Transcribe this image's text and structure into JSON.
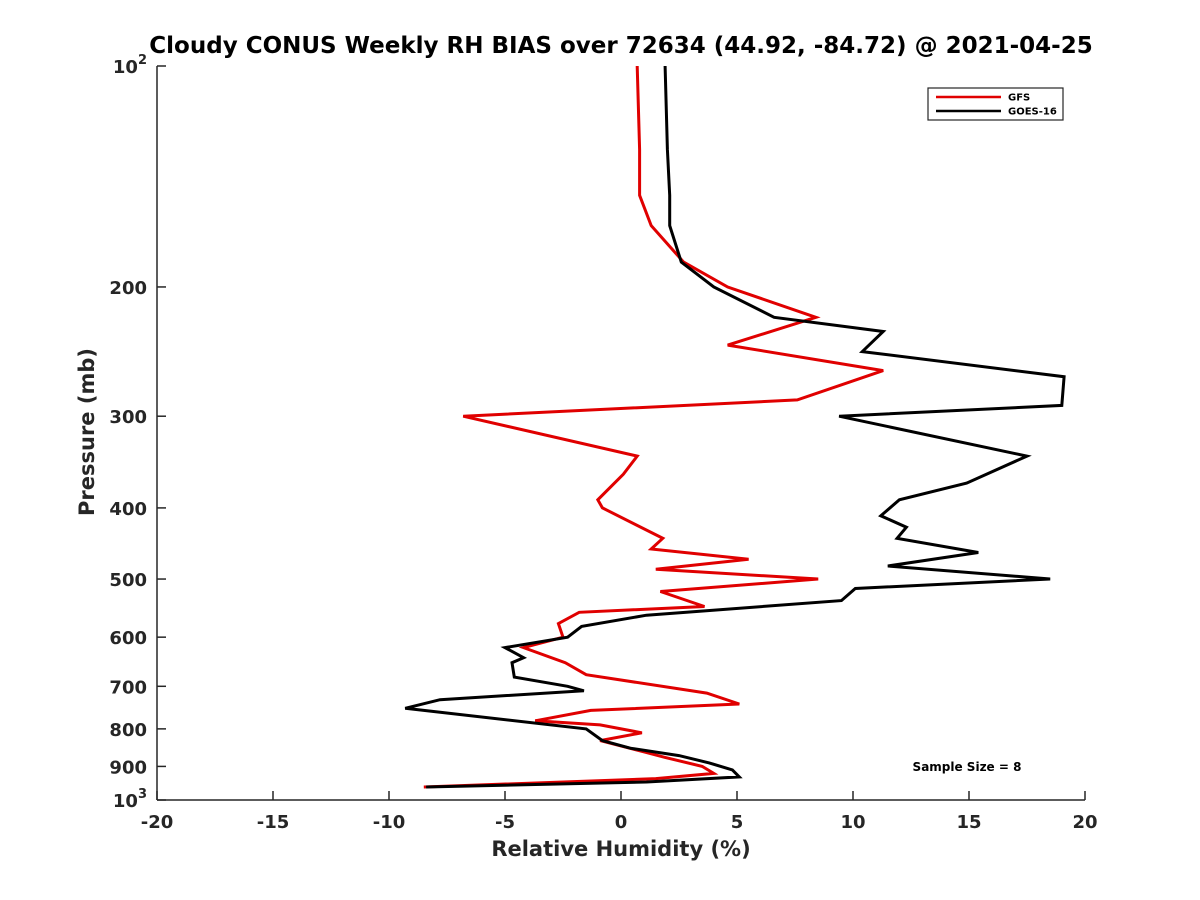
{
  "chart_data": {
    "type": "line",
    "title": "Cloudy CONUS Weekly RH BIAS over 72634 (44.92, -84.72) @ 2021-04-25",
    "xlabel": "Relative Humidity (%)",
    "ylabel": "Pressure (mb)",
    "xlim": [
      -20,
      20
    ],
    "ylim": [
      100,
      1000
    ],
    "y_scale": "log",
    "y_reversed": true,
    "x_ticks": [
      -20,
      -15,
      -10,
      -5,
      0,
      5,
      10,
      15,
      20
    ],
    "x_tick_labels": [
      "-20",
      "-15",
      "-10",
      "-5",
      "0",
      "5",
      "10",
      "15",
      "20"
    ],
    "y_ticks": [
      200,
      300,
      400,
      500,
      600,
      700,
      800,
      900
    ],
    "y_tick_labels": [
      "200",
      "300",
      "400",
      "500",
      "600",
      "700",
      "800",
      "900"
    ],
    "y_edge_ticks": [
      {
        "value": 100,
        "base": "10",
        "exp": "2"
      },
      {
        "value": 1000,
        "base": "10",
        "exp": "3"
      }
    ],
    "grid": false,
    "legend_position": "top-right",
    "annotation": "Sample Size = 8",
    "series": [
      {
        "name": "GFS",
        "color": "#e00000",
        "x": [
          0.7,
          0.8,
          0.8,
          1.3,
          2.7,
          4.6,
          8.4,
          4.6,
          11.3,
          7.6,
          -6.8,
          0.7,
          0.1,
          -1.0,
          -0.8,
          1.8,
          1.3,
          5.5,
          1.5,
          8.5,
          1.7,
          3.6,
          -1.8,
          -2.7,
          -2.5,
          -4.2,
          -2.4,
          -1.5,
          3.7,
          5.1,
          -1.3,
          -3.7,
          -0.9,
          0.9,
          -0.9,
          1.0,
          1.9,
          3.5,
          4.0,
          1.5,
          -8.5
        ],
        "p": [
          100,
          130,
          150,
          165,
          185,
          200,
          220,
          240,
          260,
          285,
          300,
          340,
          360,
          390,
          400,
          440,
          455,
          470,
          485,
          500,
          520,
          545,
          555,
          575,
          600,
          620,
          650,
          675,
          715,
          740,
          755,
          780,
          790,
          810,
          830,
          860,
          875,
          900,
          920,
          935,
          960
        ]
      },
      {
        "name": "GOES-16",
        "color": "#000000",
        "x": [
          1.9,
          2.0,
          2.1,
          2.1,
          2.6,
          4.0,
          6.6,
          11.3,
          10.4,
          19.1,
          19.0,
          9.4,
          17.5,
          14.9,
          12.0,
          11.2,
          12.3,
          11.9,
          15.4,
          11.5,
          18.5,
          10.1,
          9.5,
          1.1,
          -1.7,
          -2.3,
          -5.0,
          -4.2,
          -4.7,
          -4.6,
          -2.3,
          -1.6,
          -7.8,
          -9.3,
          -1.5,
          -0.8,
          0.4,
          2.5,
          3.8,
          4.8,
          5.1,
          1.1,
          -8.4
        ],
        "p": [
          100,
          130,
          150,
          165,
          185,
          200,
          220,
          230,
          245,
          265,
          290,
          300,
          340,
          370,
          390,
          410,
          425,
          440,
          460,
          480,
          500,
          515,
          535,
          560,
          580,
          600,
          620,
          640,
          650,
          680,
          700,
          710,
          730,
          750,
          800,
          830,
          850,
          870,
          890,
          910,
          930,
          945,
          960
        ]
      }
    ]
  }
}
